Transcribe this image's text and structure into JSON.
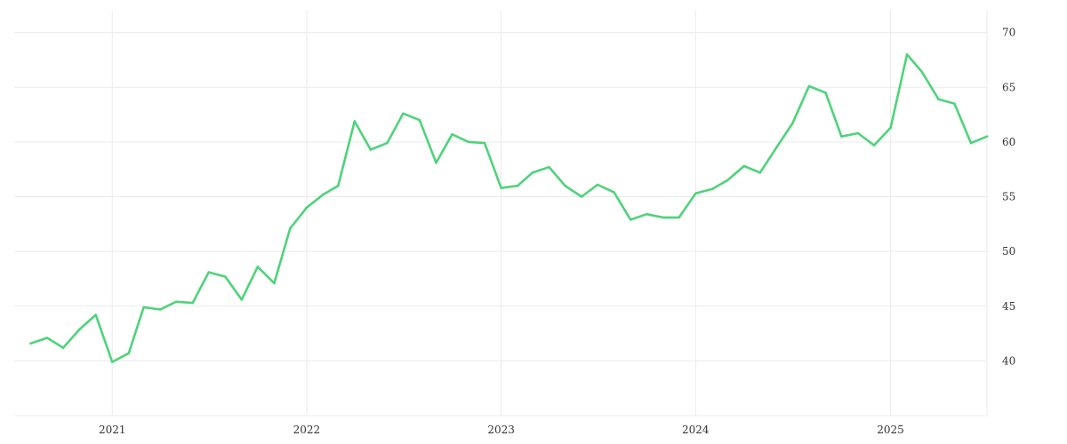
{
  "chart_data": {
    "type": "line",
    "title": "",
    "xlabel": "",
    "ylabel": "",
    "grid": true,
    "legend": "none",
    "xlim": [
      "2020-07-01",
      "2025-07-01"
    ],
    "ylim": [
      35,
      72
    ],
    "y_axis_position": "right",
    "x_ticks": [
      "2021",
      "2022",
      "2023",
      "2024",
      "2025"
    ],
    "y_ticks": [
      "40",
      "45",
      "50",
      "55",
      "60",
      "65",
      "70"
    ],
    "series": [
      {
        "color": "#4fd37b",
        "points": [
          [
            "2020-08-01",
            41.6
          ],
          [
            "2020-09-01",
            42.1
          ],
          [
            "2020-10-01",
            41.2
          ],
          [
            "2020-11-01",
            42.9
          ],
          [
            "2020-12-01",
            44.2
          ],
          [
            "2021-01-01",
            39.9
          ],
          [
            "2021-02-01",
            40.7
          ],
          [
            "2021-03-01",
            44.9
          ],
          [
            "2021-04-01",
            44.7
          ],
          [
            "2021-05-01",
            45.4
          ],
          [
            "2021-06-01",
            45.3
          ],
          [
            "2021-07-01",
            48.1
          ],
          [
            "2021-08-01",
            47.7
          ],
          [
            "2021-09-01",
            45.6
          ],
          [
            "2021-10-01",
            48.6
          ],
          [
            "2021-11-01",
            47.1
          ],
          [
            "2021-12-01",
            52.1
          ],
          [
            "2022-01-01",
            54.0
          ],
          [
            "2022-02-01",
            55.2
          ],
          [
            "2022-03-01",
            56.0
          ],
          [
            "2022-04-01",
            61.9
          ],
          [
            "2022-05-01",
            59.3
          ],
          [
            "2022-06-01",
            59.9
          ],
          [
            "2022-07-01",
            62.6
          ],
          [
            "2022-08-01",
            62.0
          ],
          [
            "2022-09-01",
            58.1
          ],
          [
            "2022-10-01",
            60.7
          ],
          [
            "2022-11-01",
            60.0
          ],
          [
            "2022-12-01",
            59.9
          ],
          [
            "2023-01-01",
            55.8
          ],
          [
            "2023-02-01",
            56.0
          ],
          [
            "2023-03-01",
            57.2
          ],
          [
            "2023-04-01",
            57.7
          ],
          [
            "2023-05-01",
            56.0
          ],
          [
            "2023-06-01",
            55.0
          ],
          [
            "2023-07-01",
            56.1
          ],
          [
            "2023-08-01",
            55.4
          ],
          [
            "2023-09-01",
            52.9
          ],
          [
            "2023-10-01",
            53.4
          ],
          [
            "2023-11-01",
            53.1
          ],
          [
            "2023-12-01",
            53.1
          ],
          [
            "2024-01-01",
            55.3
          ],
          [
            "2024-02-01",
            55.7
          ],
          [
            "2024-03-01",
            56.5
          ],
          [
            "2024-04-01",
            57.8
          ],
          [
            "2024-05-01",
            57.2
          ],
          [
            "2024-06-01",
            59.5
          ],
          [
            "2024-07-01",
            61.7
          ],
          [
            "2024-08-01",
            65.1
          ],
          [
            "2024-09-01",
            64.5
          ],
          [
            "2024-10-01",
            60.5
          ],
          [
            "2024-11-01",
            60.8
          ],
          [
            "2024-12-01",
            59.7
          ],
          [
            "2025-01-01",
            61.3
          ],
          [
            "2025-02-01",
            68.0
          ],
          [
            "2025-03-01",
            66.4
          ],
          [
            "2025-04-01",
            63.9
          ],
          [
            "2025-05-01",
            63.5
          ],
          [
            "2025-06-01",
            59.9
          ],
          [
            "2025-07-01",
            60.5
          ]
        ]
      }
    ]
  }
}
